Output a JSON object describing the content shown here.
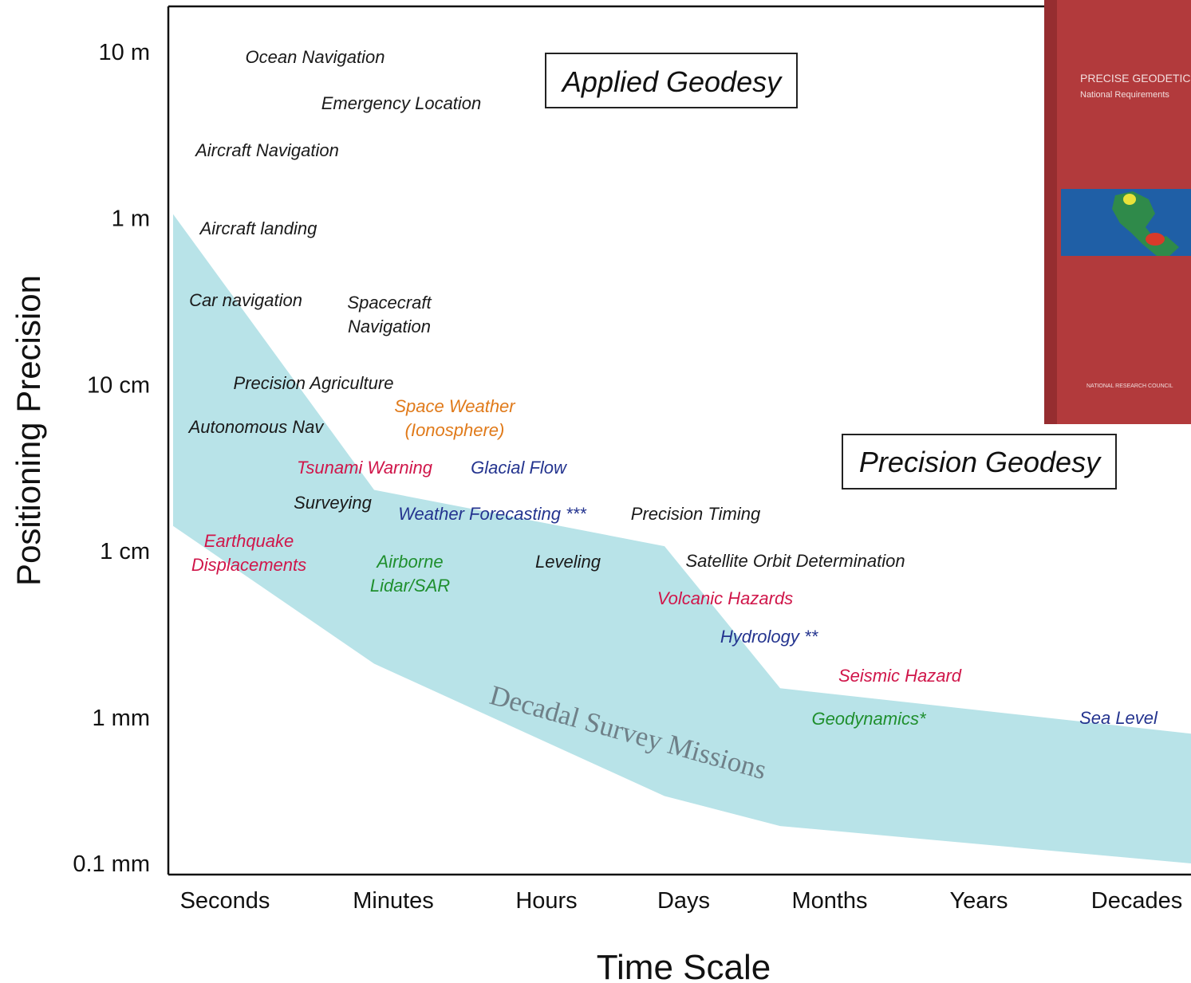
{
  "chart_data": {
    "type": "area",
    "title": "",
    "xlabel": "Time Scale",
    "ylabel": "Positioning Precision",
    "x_categories": [
      "Seconds",
      "Minutes",
      "Hours",
      "Days",
      "Months",
      "Years",
      "Decades"
    ],
    "y_ticks": [
      "10 m",
      "1 m",
      "10 cm",
      "1 cm",
      "1 mm",
      "0.1 mm"
    ],
    "y_scale": "log",
    "band": {
      "name": "Decadal Survey Missions",
      "color": "#b8e3e8",
      "upper": [
        1.0,
        0.02,
        0.009,
        0.0012,
        0.00063
      ],
      "lower": [
        0.012,
        0.0017,
        0.00026,
        0.00017,
        0.0001
      ],
      "x_positions": [
        "Seconds",
        "Minutes",
        "Days",
        "Months",
        "Decades"
      ]
    },
    "regions": [
      {
        "label": "Applied Geodesy"
      },
      {
        "label": "Precision Geodesy"
      }
    ],
    "applications": [
      {
        "lines": [
          "Ocean Navigation"
        ],
        "color": "#1a1a1a"
      },
      {
        "lines": [
          "Emergency Location"
        ],
        "color": "#1a1a1a"
      },
      {
        "lines": [
          "Aircraft Navigation"
        ],
        "color": "#1a1a1a"
      },
      {
        "lines": [
          "Aircraft landing"
        ],
        "color": "#1a1a1a"
      },
      {
        "lines": [
          "Car navigation"
        ],
        "color": "#1a1a1a"
      },
      {
        "lines": [
          "Spacecraft",
          "Navigation"
        ],
        "color": "#1a1a1a"
      },
      {
        "lines": [
          "Precision Agriculture"
        ],
        "color": "#1a1a1a"
      },
      {
        "lines": [
          "Space Weather",
          "(Ionosphere)"
        ],
        "color": "#e07a1a"
      },
      {
        "lines": [
          "Autonomous Nav"
        ],
        "color": "#1a1a1a"
      },
      {
        "lines": [
          "Tsunami Warning"
        ],
        "color": "#d0164a"
      },
      {
        "lines": [
          "Glacial Flow"
        ],
        "color": "#24348f"
      },
      {
        "lines": [
          "Surveying"
        ],
        "color": "#1a1a1a"
      },
      {
        "lines": [
          "Weather Forecasting ***"
        ],
        "color": "#24348f"
      },
      {
        "lines": [
          "Precision Timing"
        ],
        "color": "#1a1a1a"
      },
      {
        "lines": [
          "Earthquake",
          "Displacements"
        ],
        "color": "#d0164a"
      },
      {
        "lines": [
          "Airborne",
          "Lidar/SAR"
        ],
        "color": "#1f8f2e"
      },
      {
        "lines": [
          "Leveling"
        ],
        "color": "#1a1a1a"
      },
      {
        "lines": [
          "Satellite Orbit Determination"
        ],
        "color": "#1a1a1a"
      },
      {
        "lines": [
          "Volcanic Hazards"
        ],
        "color": "#d0164a"
      },
      {
        "lines": [
          "Hydrology **"
        ],
        "color": "#24348f"
      },
      {
        "lines": [
          "Seismic Hazard"
        ],
        "color": "#d0164a"
      },
      {
        "lines": [
          "Geodynamics*"
        ],
        "color": "#1f8f2e"
      },
      {
        "lines": [
          "Sea Level"
        ],
        "color": "#24348f"
      }
    ]
  },
  "inset": {
    "title_line1": "PRECISE GEODETIC",
    "title_line2": "National Requirements",
    "publisher": "NATIONAL RESEARCH COUNCIL",
    "colors": {
      "cover": "#b23a3c",
      "map_sea": "#1f5fa6"
    }
  }
}
